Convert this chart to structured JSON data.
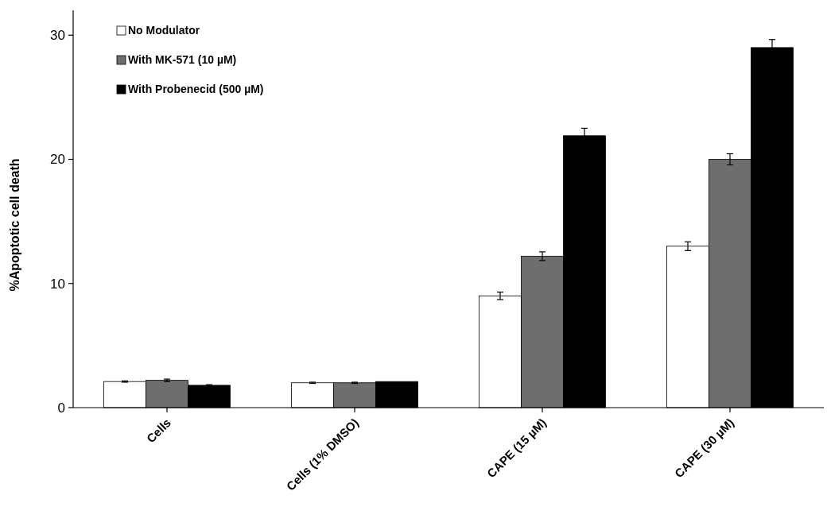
{
  "chart_data": {
    "type": "bar",
    "ylabel": "%Apoptotic cell death",
    "categories": [
      "Cells",
      "Cells (1% DMSO)",
      "CAPE (15 µM)",
      "CAPE (30 µM)"
    ],
    "series": [
      {
        "name": "No Modulator",
        "color": "#ffffff",
        "values": [
          2.1,
          2.0,
          9.0,
          13.0
        ],
        "errors": [
          0.05,
          0.05,
          0.3,
          0.35
        ]
      },
      {
        "name": "With MK-571 (10 µM)",
        "color": "#6e6e6e",
        "values": [
          2.2,
          2.0,
          12.2,
          20.0
        ],
        "errors": [
          0.1,
          0.05,
          0.35,
          0.45
        ]
      },
      {
        "name": "With Probenecid (500 µM)",
        "color": "#000000",
        "values": [
          1.8,
          2.1,
          21.9,
          29.0
        ],
        "errors": [
          0.05,
          null,
          0.6,
          0.65
        ]
      }
    ],
    "ylim": [
      0,
      32
    ],
    "yticks": [
      0,
      10,
      20,
      30
    ],
    "grid": false,
    "legend": "top left"
  }
}
